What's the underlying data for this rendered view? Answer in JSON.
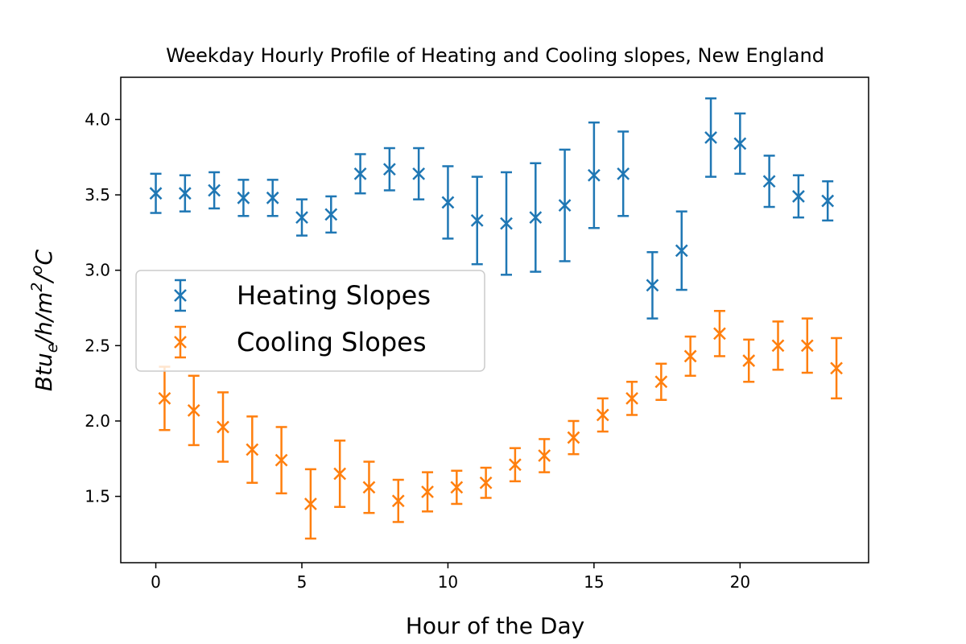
{
  "chart_data": {
    "type": "scatter",
    "title": "Weekday Hourly Profile of Heating and Cooling slopes, New England",
    "xlabel": "Hour of the Day",
    "ylabel_parts": {
      "base": "Btu",
      "sub": "e",
      "mid": "/h/m",
      "sup1": "2",
      "slash": "/",
      "sup2": "o",
      "tail": "C"
    },
    "xlim": [
      -1.2,
      24.4
    ],
    "ylim": [
      1.06,
      4.28
    ],
    "x_ticks": [
      0,
      5,
      10,
      15,
      20
    ],
    "x_tick_labels": [
      "0",
      "5",
      "10",
      "15",
      "20"
    ],
    "y_ticks": [
      1.5,
      2.0,
      2.5,
      3.0,
      3.5,
      4.0
    ],
    "y_tick_labels": [
      "1.5",
      "2.0",
      "2.5",
      "3.0",
      "3.5",
      "4.0"
    ],
    "grid": false,
    "legend_position": "center-left",
    "series": [
      {
        "name": "Heating Slopes",
        "color": "#1f77b4",
        "marker": "x",
        "x": [
          0,
          1,
          2,
          3,
          4,
          5,
          6,
          7,
          8,
          9,
          10,
          11,
          12,
          13,
          14,
          15,
          16,
          17,
          18,
          19,
          20,
          21,
          22,
          23
        ],
        "y": [
          3.51,
          3.51,
          3.53,
          3.48,
          3.48,
          3.35,
          3.37,
          3.64,
          3.67,
          3.64,
          3.45,
          3.33,
          3.31,
          3.35,
          3.43,
          3.63,
          3.64,
          2.9,
          3.13,
          3.88,
          3.84,
          3.59,
          3.49,
          3.46
        ],
        "err": [
          0.13,
          0.12,
          0.12,
          0.12,
          0.12,
          0.12,
          0.12,
          0.13,
          0.14,
          0.17,
          0.24,
          0.29,
          0.34,
          0.36,
          0.37,
          0.35,
          0.28,
          0.22,
          0.26,
          0.26,
          0.2,
          0.17,
          0.14,
          0.13
        ]
      },
      {
        "name": "Cooling Slopes",
        "color": "#ff7f0e",
        "marker": "x",
        "x": [
          0.3,
          1.3,
          2.3,
          3.3,
          4.3,
          5.3,
          6.3,
          7.3,
          8.3,
          9.3,
          10.3,
          11.3,
          12.3,
          13.3,
          14.3,
          15.3,
          16.3,
          17.3,
          18.3,
          19.3,
          20.3,
          21.3,
          22.3,
          23.3
        ],
        "y": [
          2.15,
          2.07,
          1.96,
          1.81,
          1.74,
          1.45,
          1.65,
          1.56,
          1.47,
          1.53,
          1.56,
          1.59,
          1.71,
          1.77,
          1.89,
          2.04,
          2.15,
          2.26,
          2.43,
          2.58,
          2.4,
          2.5,
          2.5,
          2.35
        ],
        "err": [
          0.21,
          0.23,
          0.23,
          0.22,
          0.22,
          0.23,
          0.22,
          0.17,
          0.14,
          0.13,
          0.11,
          0.1,
          0.11,
          0.11,
          0.11,
          0.11,
          0.11,
          0.12,
          0.13,
          0.15,
          0.14,
          0.16,
          0.18,
          0.2
        ]
      }
    ]
  }
}
